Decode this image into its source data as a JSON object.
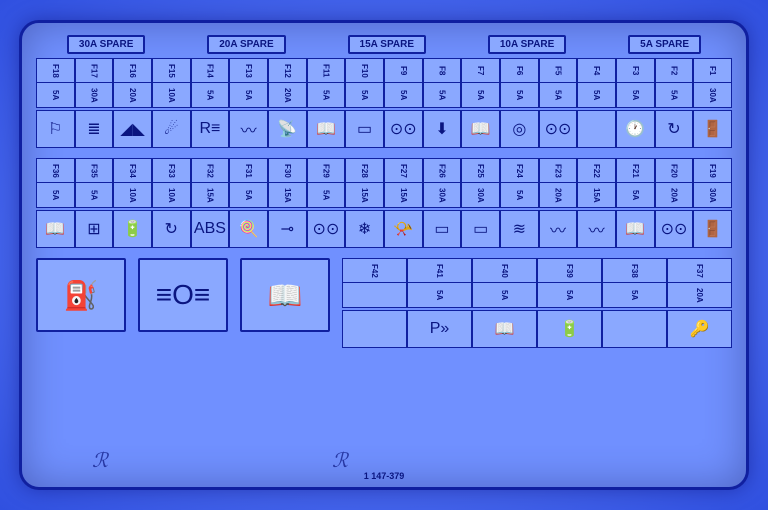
{
  "partNumber": "1 147-379",
  "spares": [
    "30A SPARE",
    "20A SPARE",
    "15A SPARE",
    "10A SPARE",
    "5A SPARE"
  ],
  "row1": [
    {
      "id": "F1",
      "amp": "30A",
      "icon": "🚪"
    },
    {
      "id": "F2",
      "amp": "5A",
      "icon": "↻"
    },
    {
      "id": "F3",
      "amp": "5A",
      "icon": "🕐"
    },
    {
      "id": "F4",
      "amp": "5A",
      "icon": ""
    },
    {
      "id": "F5",
      "amp": "5A",
      "icon": "⊙⊙"
    },
    {
      "id": "F6",
      "amp": "5A",
      "icon": "◎"
    },
    {
      "id": "F7",
      "amp": "5A",
      "icon": "📖"
    },
    {
      "id": "F8",
      "amp": "5A",
      "icon": "⬇"
    },
    {
      "id": "F9",
      "amp": "5A",
      "icon": "⊙⊙"
    },
    {
      "id": "F10",
      "amp": "5A",
      "icon": "▭"
    },
    {
      "id": "F11",
      "amp": "5A",
      "icon": "📖"
    },
    {
      "id": "F12",
      "amp": "20A",
      "icon": "📡"
    },
    {
      "id": "F13",
      "amp": "5A",
      "icon": "〰"
    },
    {
      "id": "F14",
      "amp": "5A",
      "icon": "R≡"
    },
    {
      "id": "F15",
      "amp": "10A",
      "icon": "☄"
    },
    {
      "id": "F16",
      "amp": "20A",
      "icon": "◢◣"
    },
    {
      "id": "F17",
      "amp": "30A",
      "icon": "≣"
    },
    {
      "id": "F18",
      "amp": "5A",
      "icon": "⚐"
    }
  ],
  "row2": [
    {
      "id": "F19",
      "amp": "30A",
      "icon": "🚪"
    },
    {
      "id": "F20",
      "amp": "20A",
      "icon": "⊙⊙"
    },
    {
      "id": "F21",
      "amp": "5A",
      "icon": "📖"
    },
    {
      "id": "F22",
      "amp": "15A",
      "icon": "〰"
    },
    {
      "id": "F23",
      "amp": "20A",
      "icon": "〰"
    },
    {
      "id": "F24",
      "amp": "5A",
      "icon": "≋"
    },
    {
      "id": "F25",
      "amp": "30A",
      "icon": "▭"
    },
    {
      "id": "F26",
      "amp": "30A",
      "icon": "▭"
    },
    {
      "id": "F27",
      "amp": "15A",
      "icon": "📯"
    },
    {
      "id": "F28",
      "amp": "15A",
      "icon": "❄"
    },
    {
      "id": "F29",
      "amp": "5A",
      "icon": "⊙⊙"
    },
    {
      "id": "F30",
      "amp": "15A",
      "icon": "⊸"
    },
    {
      "id": "F31",
      "amp": "5A",
      "icon": "🍭"
    },
    {
      "id": "F32",
      "amp": "15A",
      "icon": "ABS"
    },
    {
      "id": "F33",
      "amp": "10A",
      "icon": "↻"
    },
    {
      "id": "F34",
      "amp": "10A",
      "icon": "🔋"
    },
    {
      "id": "F35",
      "amp": "5A",
      "icon": "⊞"
    },
    {
      "id": "F36",
      "amp": "5A",
      "icon": "📖"
    }
  ],
  "row3": [
    {
      "id": "F37",
      "amp": "20A",
      "icon": "🔑"
    },
    {
      "id": "F38",
      "amp": "5A",
      "icon": ""
    },
    {
      "id": "F39",
      "amp": "5A",
      "icon": "🔋"
    },
    {
      "id": "F40",
      "amp": "5A",
      "icon": "📖"
    },
    {
      "id": "F41",
      "amp": "5A",
      "icon": "P»"
    },
    {
      "id": "F42",
      "amp": "",
      "icon": ""
    }
  ],
  "bigIcons": [
    "⛽",
    "≡O≡",
    "📖"
  ],
  "colors": {
    "panel_bg": "#7090ff",
    "cell_bg": "#8aa8ff",
    "border": "#1020a0",
    "text": "#0a1580"
  }
}
